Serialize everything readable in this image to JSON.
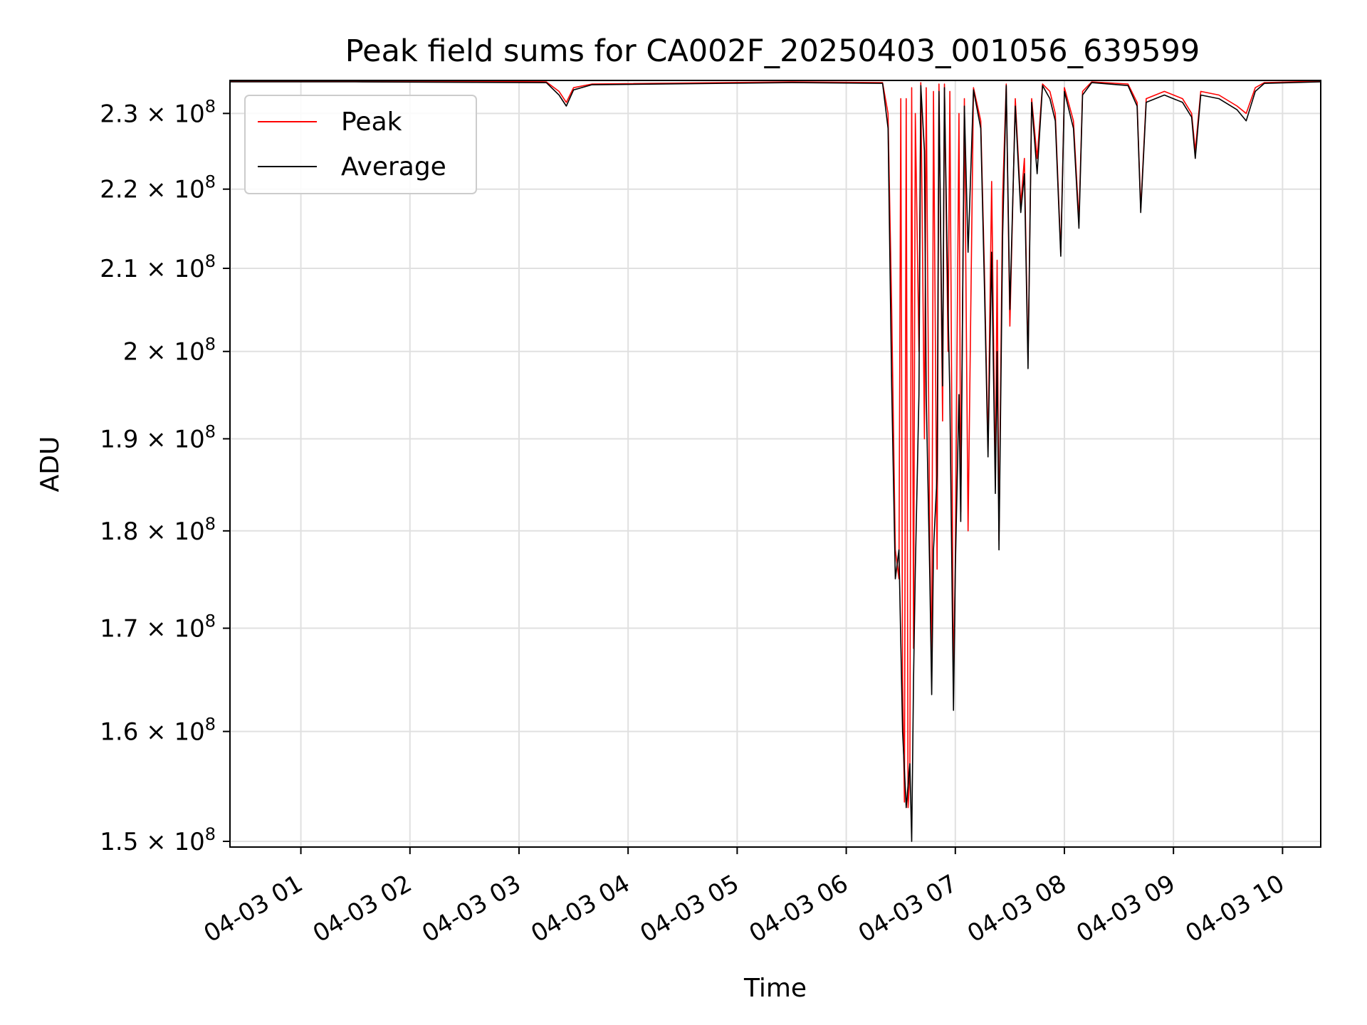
{
  "chart_data": {
    "type": "line",
    "title": "Peak field sums for CA002F_20250403_001056_639599",
    "xlabel": "Time",
    "ylabel": "ADU",
    "y_scale": "log",
    "ylim": [
      149500000,
      234500000
    ],
    "xlim": [
      "2025-04-03 00:21",
      "2025-04-03 10:21"
    ],
    "grid": true,
    "legend_position": "top-left",
    "x_ticks": [
      "04-03 01",
      "04-03 02",
      "04-03 03",
      "04-03 04",
      "04-03 05",
      "04-03 06",
      "04-03 07",
      "04-03 08",
      "04-03 09",
      "04-03 10"
    ],
    "x_tick_times": [
      "2025-04-03 01:00",
      "2025-04-03 02:00",
      "2025-04-03 03:00",
      "2025-04-03 04:00",
      "2025-04-03 05:00",
      "2025-04-03 06:00",
      "2025-04-03 07:00",
      "2025-04-03 08:00",
      "2025-04-03 09:00",
      "2025-04-03 10:00"
    ],
    "y_ticks": [
      {
        "value": 150000000,
        "mantissa": "1.5"
      },
      {
        "value": 160000000,
        "mantissa": "1.6"
      },
      {
        "value": 170000000,
        "mantissa": "1.7"
      },
      {
        "value": 180000000,
        "mantissa": "1.8"
      },
      {
        "value": 190000000,
        "mantissa": "1.9"
      },
      {
        "value": 200000000,
        "mantissa": "2"
      },
      {
        "value": 210000000,
        "mantissa": "2.1"
      },
      {
        "value": 220000000,
        "mantissa": "2.2"
      },
      {
        "value": 230000000,
        "mantissa": "2.3"
      }
    ],
    "y_tick_exponent": "8",
    "series": [
      {
        "name": "Peak",
        "color": "#ff0000",
        "points": [
          [
            "2025-04-03 00:21",
            234400000
          ],
          [
            "2025-04-03 01:30",
            234400000
          ],
          [
            "2025-04-03 03:15",
            234300000
          ],
          [
            "2025-04-03 03:22",
            233000000
          ],
          [
            "2025-04-03 03:26",
            231500000
          ],
          [
            "2025-04-03 03:30",
            233500000
          ],
          [
            "2025-04-03 03:40",
            234000000
          ],
          [
            "2025-04-03 05:30",
            234300000
          ],
          [
            "2025-04-03 06:20",
            234200000
          ],
          [
            "2025-04-03 06:23",
            230000000
          ],
          [
            "2025-04-03 06:25",
            205000000
          ],
          [
            "2025-04-03 06:27",
            178000000
          ],
          [
            "2025-04-03 06:29",
            175000000
          ],
          [
            "2025-04-03 06:30",
            232000000
          ],
          [
            "2025-04-03 06:31",
            165000000
          ],
          [
            "2025-04-03 06:32",
            153500000
          ],
          [
            "2025-04-03 06:33",
            232000000
          ],
          [
            "2025-04-03 06:34",
            153000000
          ],
          [
            "2025-04-03 06:35",
            156000000
          ],
          [
            "2025-04-03 06:36",
            233500000
          ],
          [
            "2025-04-03 06:37",
            168000000
          ],
          [
            "2025-04-03 06:38",
            230000000
          ],
          [
            "2025-04-03 06:40",
            200000000
          ],
          [
            "2025-04-03 06:41",
            234200000
          ],
          [
            "2025-04-03 06:43",
            190000000
          ],
          [
            "2025-04-03 06:44",
            233500000
          ],
          [
            "2025-04-03 06:46",
            178000000
          ],
          [
            "2025-04-03 06:47",
            165000000
          ],
          [
            "2025-04-03 06:48",
            233000000
          ],
          [
            "2025-04-03 06:50",
            176000000
          ],
          [
            "2025-04-03 06:51",
            234000000
          ],
          [
            "2025-04-03 06:53",
            192000000
          ],
          [
            "2025-04-03 06:54",
            234000000
          ],
          [
            "2025-04-03 06:56",
            200000000
          ],
          [
            "2025-04-03 06:57",
            233000000
          ],
          [
            "2025-04-03 06:59",
            164000000
          ],
          [
            "2025-04-03 07:00",
            177000000
          ],
          [
            "2025-04-03 07:02",
            230000000
          ],
          [
            "2025-04-03 07:03",
            182000000
          ],
          [
            "2025-04-03 07:05",
            232000000
          ],
          [
            "2025-04-03 07:07",
            180000000
          ],
          [
            "2025-04-03 07:10",
            233500000
          ],
          [
            "2025-04-03 07:14",
            229000000
          ],
          [
            "2025-04-03 07:16",
            210000000
          ],
          [
            "2025-04-03 07:18",
            189000000
          ],
          [
            "2025-04-03 07:20",
            221000000
          ],
          [
            "2025-04-03 07:22",
            185000000
          ],
          [
            "2025-04-03 07:23",
            211000000
          ],
          [
            "2025-04-03 07:24",
            179000000
          ],
          [
            "2025-04-03 07:26",
            219000000
          ],
          [
            "2025-04-03 07:28",
            234000000
          ],
          [
            "2025-04-03 07:30",
            203000000
          ],
          [
            "2025-04-03 07:33",
            232000000
          ],
          [
            "2025-04-03 07:36",
            218000000
          ],
          [
            "2025-04-03 07:38",
            224000000
          ],
          [
            "2025-04-03 07:40",
            199000000
          ],
          [
            "2025-04-03 07:42",
            232000000
          ],
          [
            "2025-04-03 07:45",
            224000000
          ],
          [
            "2025-04-03 07:48",
            234000000
          ],
          [
            "2025-04-03 07:52",
            233000000
          ],
          [
            "2025-04-03 07:55",
            230000000
          ],
          [
            "2025-04-03 07:58",
            212000000
          ],
          [
            "2025-04-03 08:00",
            233500000
          ],
          [
            "2025-04-03 08:05",
            229000000
          ],
          [
            "2025-04-03 08:08",
            216000000
          ],
          [
            "2025-04-03 08:10",
            233000000
          ],
          [
            "2025-04-03 08:15",
            234300000
          ],
          [
            "2025-04-03 08:35",
            234000000
          ],
          [
            "2025-04-03 08:40",
            231500000
          ],
          [
            "2025-04-03 08:42",
            217500000
          ],
          [
            "2025-04-03 08:45",
            232000000
          ],
          [
            "2025-04-03 08:55",
            233000000
          ],
          [
            "2025-04-03 09:05",
            232000000
          ],
          [
            "2025-04-03 09:10",
            230000000
          ],
          [
            "2025-04-03 09:12",
            225000000
          ],
          [
            "2025-04-03 09:15",
            233000000
          ],
          [
            "2025-04-03 09:25",
            232500000
          ],
          [
            "2025-04-03 09:35",
            231000000
          ],
          [
            "2025-04-03 09:40",
            230000000
          ],
          [
            "2025-04-03 09:45",
            233500000
          ],
          [
            "2025-04-03 09:50",
            234200000
          ],
          [
            "2025-04-03 10:21",
            234400000
          ]
        ]
      },
      {
        "name": "Average",
        "color": "#000000",
        "points": [
          [
            "2025-04-03 00:21",
            234300000
          ],
          [
            "2025-04-03 01:30",
            234300000
          ],
          [
            "2025-04-03 03:15",
            234200000
          ],
          [
            "2025-04-03 03:22",
            232500000
          ],
          [
            "2025-04-03 03:26",
            231000000
          ],
          [
            "2025-04-03 03:30",
            233200000
          ],
          [
            "2025-04-03 03:40",
            233900000
          ],
          [
            "2025-04-03 05:30",
            234200000
          ],
          [
            "2025-04-03 06:20",
            234100000
          ],
          [
            "2025-04-03 06:23",
            228000000
          ],
          [
            "2025-04-03 06:25",
            196000000
          ],
          [
            "2025-04-03 06:27",
            175000000
          ],
          [
            "2025-04-03 06:29",
            178000000
          ],
          [
            "2025-04-03 06:31",
            160000000
          ],
          [
            "2025-04-03 06:33",
            153000000
          ],
          [
            "2025-04-03 06:35",
            157000000
          ],
          [
            "2025-04-03 06:36",
            150000000
          ],
          [
            "2025-04-03 06:37",
            165000000
          ],
          [
            "2025-04-03 06:38",
            176000000
          ],
          [
            "2025-04-03 06:40",
            195000000
          ],
          [
            "2025-04-03 06:41",
            233800000
          ],
          [
            "2025-04-03 06:43",
            225000000
          ],
          [
            "2025-04-03 06:44",
            195000000
          ],
          [
            "2025-04-03 06:46",
            175000000
          ],
          [
            "2025-04-03 06:47",
            163500000
          ],
          [
            "2025-04-03 06:48",
            178000000
          ],
          [
            "2025-04-03 06:50",
            186000000
          ],
          [
            "2025-04-03 06:51",
            233000000
          ],
          [
            "2025-04-03 06:53",
            196000000
          ],
          [
            "2025-04-03 06:54",
            233500000
          ],
          [
            "2025-04-03 06:56",
            205000000
          ],
          [
            "2025-04-03 06:57",
            195000000
          ],
          [
            "2025-04-03 06:59",
            162000000
          ],
          [
            "2025-04-03 07:00",
            176000000
          ],
          [
            "2025-04-03 07:02",
            195000000
          ],
          [
            "2025-04-03 07:03",
            181000000
          ],
          [
            "2025-04-03 07:05",
            231000000
          ],
          [
            "2025-04-03 07:07",
            212000000
          ],
          [
            "2025-04-03 07:10",
            233200000
          ],
          [
            "2025-04-03 07:14",
            228000000
          ],
          [
            "2025-04-03 07:16",
            208000000
          ],
          [
            "2025-04-03 07:18",
            188000000
          ],
          [
            "2025-04-03 07:20",
            212000000
          ],
          [
            "2025-04-03 07:22",
            184000000
          ],
          [
            "2025-04-03 07:23",
            200000000
          ],
          [
            "2025-04-03 07:24",
            178000000
          ],
          [
            "2025-04-03 07:26",
            214000000
          ],
          [
            "2025-04-03 07:28",
            233800000
          ],
          [
            "2025-04-03 07:30",
            205000000
          ],
          [
            "2025-04-03 07:33",
            231000000
          ],
          [
            "2025-04-03 07:36",
            217000000
          ],
          [
            "2025-04-03 07:38",
            222000000
          ],
          [
            "2025-04-03 07:40",
            198000000
          ],
          [
            "2025-04-03 07:42",
            231500000
          ],
          [
            "2025-04-03 07:45",
            222000000
          ],
          [
            "2025-04-03 07:48",
            233800000
          ],
          [
            "2025-04-03 07:52",
            232000000
          ],
          [
            "2025-04-03 07:55",
            229000000
          ],
          [
            "2025-04-03 07:58",
            211500000
          ],
          [
            "2025-04-03 08:00",
            233000000
          ],
          [
            "2025-04-03 08:05",
            228000000
          ],
          [
            "2025-04-03 08:08",
            215000000
          ],
          [
            "2025-04-03 08:10",
            232500000
          ],
          [
            "2025-04-03 08:15",
            234200000
          ],
          [
            "2025-04-03 08:35",
            233800000
          ],
          [
            "2025-04-03 08:40",
            231000000
          ],
          [
            "2025-04-03 08:42",
            217000000
          ],
          [
            "2025-04-03 08:45",
            231500000
          ],
          [
            "2025-04-03 08:55",
            232500000
          ],
          [
            "2025-04-03 09:05",
            231500000
          ],
          [
            "2025-04-03 09:10",
            229500000
          ],
          [
            "2025-04-03 09:12",
            224000000
          ],
          [
            "2025-04-03 09:15",
            232500000
          ],
          [
            "2025-04-03 09:25",
            232000000
          ],
          [
            "2025-04-03 09:35",
            230500000
          ],
          [
            "2025-04-03 09:40",
            229000000
          ],
          [
            "2025-04-03 09:45",
            233000000
          ],
          [
            "2025-04-03 09:50",
            234100000
          ],
          [
            "2025-04-03 10:21",
            234300000
          ]
        ]
      }
    ]
  }
}
